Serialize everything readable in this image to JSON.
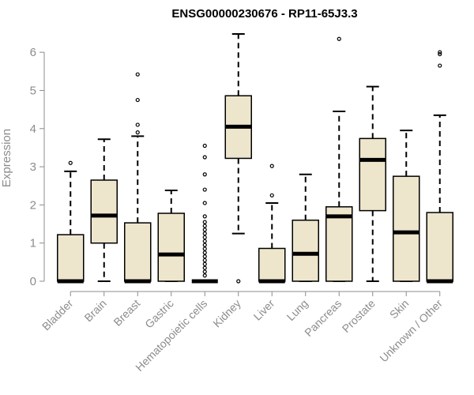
{
  "chart_data": {
    "type": "box",
    "title": "ENSG00000230676 - RP11-65J3.3",
    "xlabel": "",
    "ylabel": "Expression",
    "ylim": [
      0,
      6.5
    ],
    "yticks": [
      0,
      1,
      2,
      3,
      4,
      5,
      6
    ],
    "box_fill": "#ede6cc",
    "categories": [
      "Bladder",
      "Brain",
      "Breast",
      "Gastric",
      "Hematopoietic cells",
      "Kidney",
      "Liver",
      "Lung",
      "Pancreas",
      "Prostate",
      "Skin",
      "Unknown / Other"
    ],
    "boxes": [
      {
        "min": 0,
        "q1": 0,
        "median": 0,
        "q3": 1.22,
        "max": 2.88,
        "outliers": [
          3.1
        ]
      },
      {
        "min": 0,
        "q1": 1.0,
        "median": 1.72,
        "q3": 2.65,
        "max": 3.72,
        "outliers": []
      },
      {
        "min": 0,
        "q1": 0,
        "median": 0,
        "q3": 1.53,
        "max": 3.8,
        "outliers": [
          3.9,
          4.1,
          4.75,
          5.42
        ]
      },
      {
        "min": 0,
        "q1": 0,
        "median": 0.7,
        "q3": 1.78,
        "max": 2.38,
        "outliers": []
      },
      {
        "min": 0,
        "q1": 0,
        "median": 0,
        "q3": 0,
        "max": 0,
        "outliers": [
          0.15,
          0.25,
          0.35,
          0.45,
          0.55,
          0.65,
          0.75,
          0.85,
          0.95,
          1.05,
          1.15,
          1.25,
          1.35,
          1.45,
          1.55,
          1.7,
          2.05,
          2.4,
          2.8,
          3.25,
          3.55
        ]
      },
      {
        "min": 1.25,
        "q1": 3.22,
        "median": 4.05,
        "q3": 4.86,
        "max": 6.48,
        "outliers": [
          0
        ]
      },
      {
        "min": 0,
        "q1": 0,
        "median": 0,
        "q3": 0.86,
        "max": 2.05,
        "outliers": [
          2.25,
          3.02
        ]
      },
      {
        "min": 0,
        "q1": 0,
        "median": 0.72,
        "q3": 1.6,
        "max": 2.8,
        "outliers": []
      },
      {
        "min": 0,
        "q1": 0,
        "median": 1.7,
        "q3": 1.95,
        "max": 4.45,
        "outliers": [
          6.35
        ]
      },
      {
        "min": 0,
        "q1": 1.85,
        "median": 3.18,
        "q3": 3.74,
        "max": 5.1,
        "outliers": []
      },
      {
        "min": 0,
        "q1": 0,
        "median": 1.28,
        "q3": 2.75,
        "max": 3.95,
        "outliers": []
      },
      {
        "min": 0,
        "q1": 0,
        "median": 0,
        "q3": 1.8,
        "max": 4.35,
        "outliers": [
          5.65,
          5.95,
          6.0
        ]
      }
    ]
  }
}
